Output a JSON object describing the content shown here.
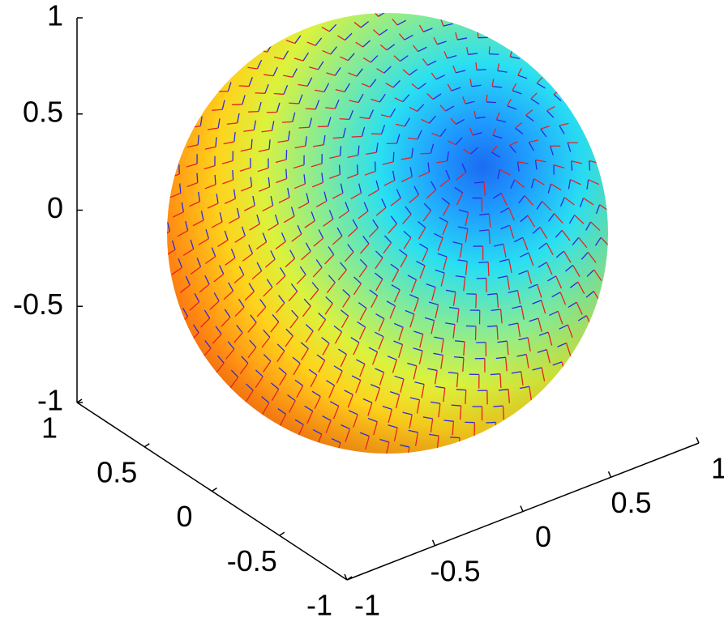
{
  "chart_data": {
    "type": "sphere3d",
    "xlim": [
      -1,
      1
    ],
    "xticks": [
      -1,
      -0.5,
      0,
      0.5,
      1
    ],
    "ylim": [
      -1,
      1
    ],
    "yticks": [
      -1,
      -0.5,
      0,
      0.5,
      1
    ],
    "zlim": [
      -1,
      1
    ],
    "zticks": [
      -1,
      -0.5,
      0,
      0.5,
      1
    ]
  }
}
